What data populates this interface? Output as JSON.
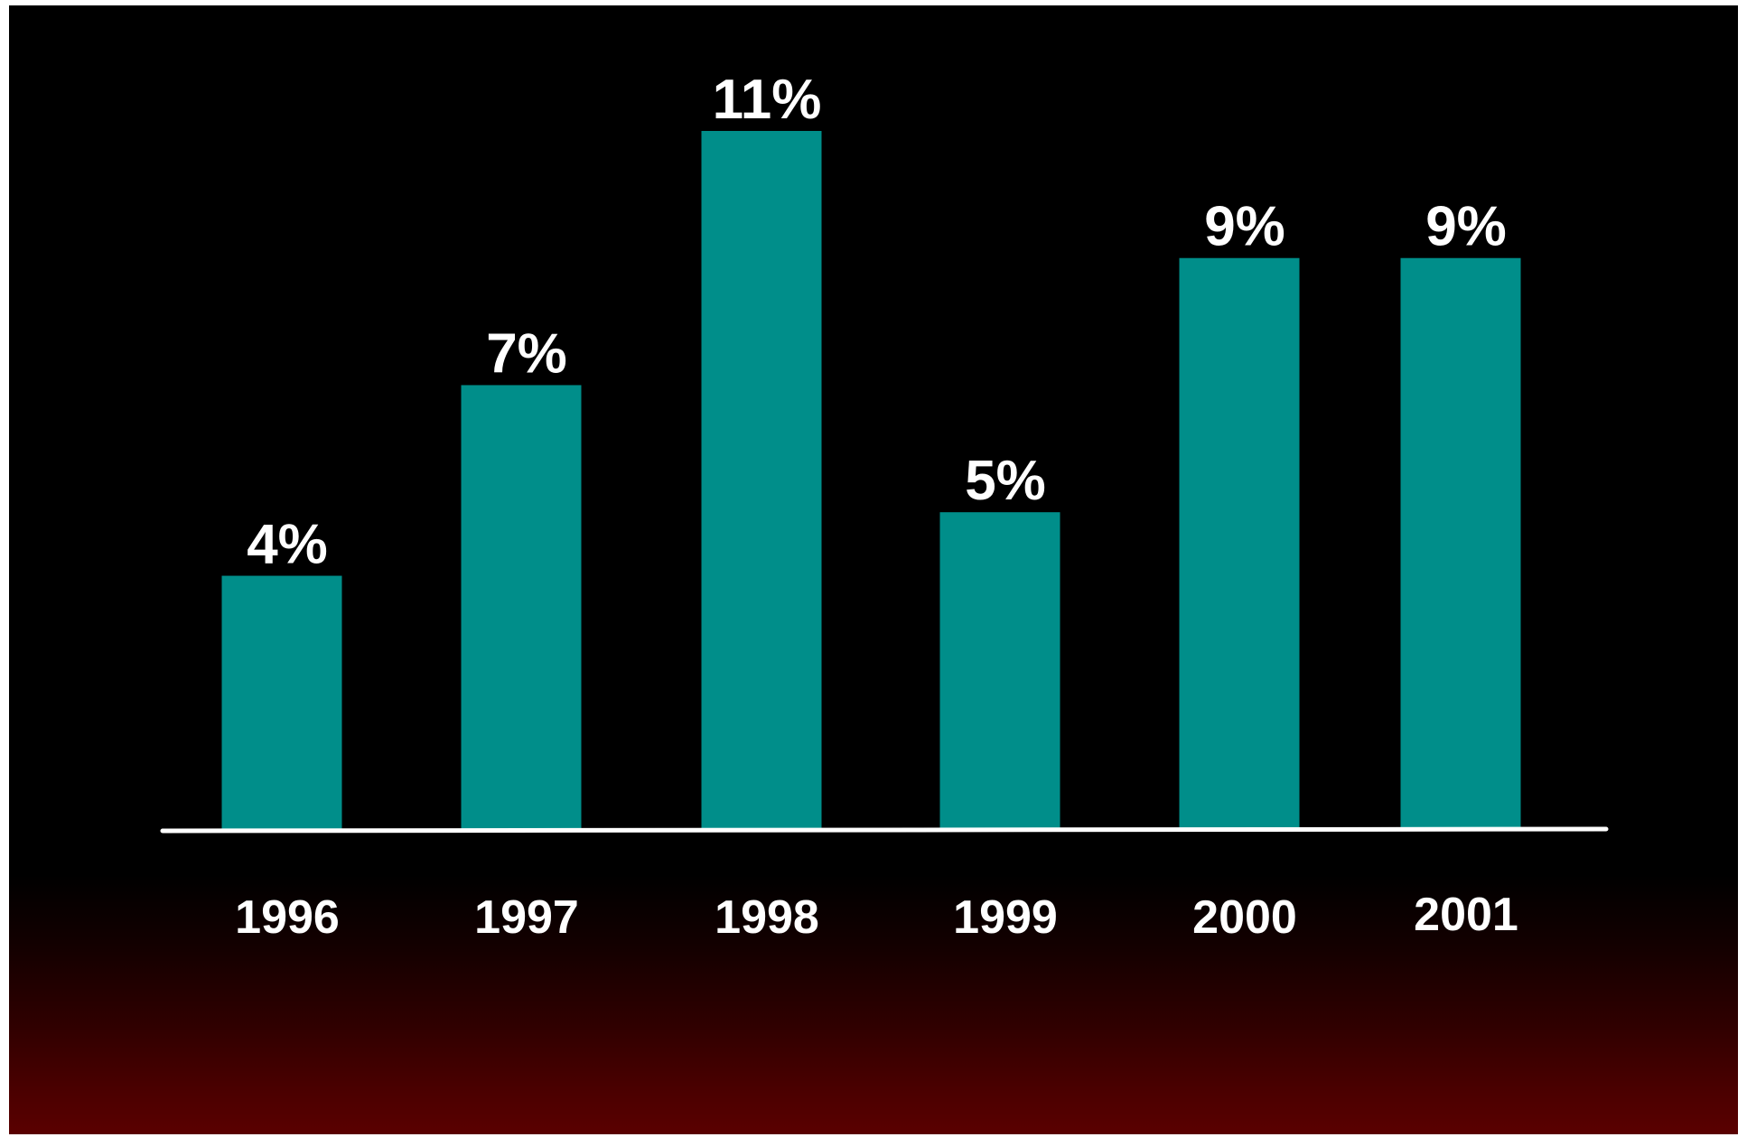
{
  "chart_data": {
    "type": "bar",
    "title": "",
    "xlabel": "",
    "ylabel": "",
    "categories": [
      "1996",
      "1997",
      "1998",
      "1999",
      "2000",
      "2001"
    ],
    "values": [
      4,
      7,
      11,
      5,
      9,
      9
    ],
    "data_labels": [
      "4%",
      "7%",
      "11%",
      "5%",
      "9%",
      "9%"
    ],
    "ylim": [
      0,
      11.5
    ],
    "grid": false,
    "legend": "none",
    "colors": {
      "bar": "#008E8A",
      "axis": "#ffffff",
      "text": "#ffffff",
      "background_top": "#000000",
      "background_bottom": "#5a0000"
    }
  }
}
